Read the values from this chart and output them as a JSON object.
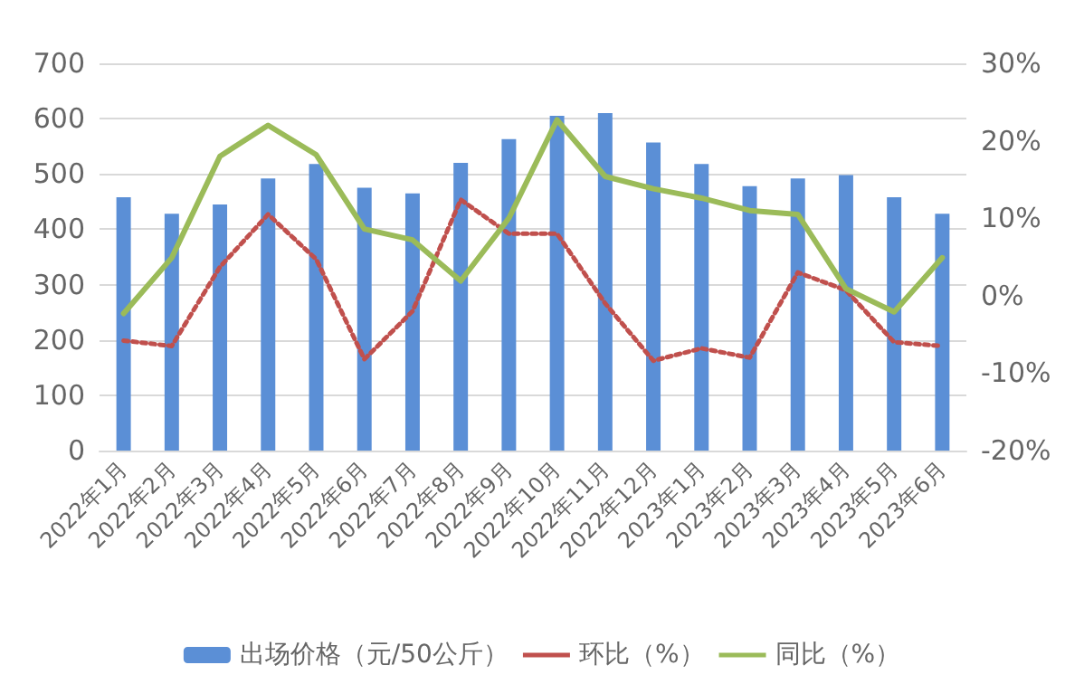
{
  "chart_data": {
    "type": "bar",
    "categories": [
      "2022年1月",
      "2022年2月",
      "2022年3月",
      "2022年4月",
      "2022年5月",
      "2022年6月",
      "2022年7月",
      "2022年8月",
      "2022年9月",
      "2022年10月",
      "2022年11月",
      "2022年12月",
      "2023年1月",
      "2023年2月",
      "2023年3月",
      "2023年4月",
      "2023年5月",
      "2023年6月"
    ],
    "series": [
      {
        "name": "出场价格（元/50公斤）",
        "color": "#5b8fd6",
        "values": [
          458,
          428,
          445,
          492,
          518,
          475,
          465,
          520,
          563,
          605,
          610,
          557,
          518,
          478,
          492,
          498,
          458,
          428
        ]
      },
      {
        "name": "环比（%）",
        "type": "line",
        "axis": "y2",
        "color": "#c0504d",
        "line_style": "dotted",
        "values": [
          -5.8,
          -6.5,
          3.7,
          10.5,
          4.7,
          -8.2,
          -2,
          12.4,
          8,
          8,
          -1,
          -8.4,
          -6.8,
          -8,
          3,
          0.7,
          -6,
          -6.5
        ]
      },
      {
        "name": "同比（%）",
        "type": "line",
        "axis": "y2",
        "color": "#9bbb59",
        "line_style": "solid",
        "values": [
          -2.3,
          4.9,
          18,
          22,
          18.2,
          8.6,
          7.2,
          1.9,
          10,
          22.7,
          15.4,
          13.8,
          12.6,
          11,
          10.5,
          0.9,
          -2.1,
          4.9
        ]
      }
    ],
    "ylim": [
      0,
      700
    ],
    "yticks": [
      0,
      100,
      200,
      300,
      400,
      500,
      600,
      700
    ],
    "y2lim": [
      -20,
      30
    ],
    "y2ticks": [
      {
        "value": -20,
        "label": "-20%"
      },
      {
        "value": -10,
        "label": "-10%"
      },
      {
        "value": 0,
        "label": "0%"
      },
      {
        "value": 10,
        "label": "10%"
      },
      {
        "value": 20,
        "label": "20%"
      },
      {
        "value": 30,
        "label": "30%"
      }
    ],
    "grid": "y",
    "legend": "bottom",
    "marker": "none"
  }
}
